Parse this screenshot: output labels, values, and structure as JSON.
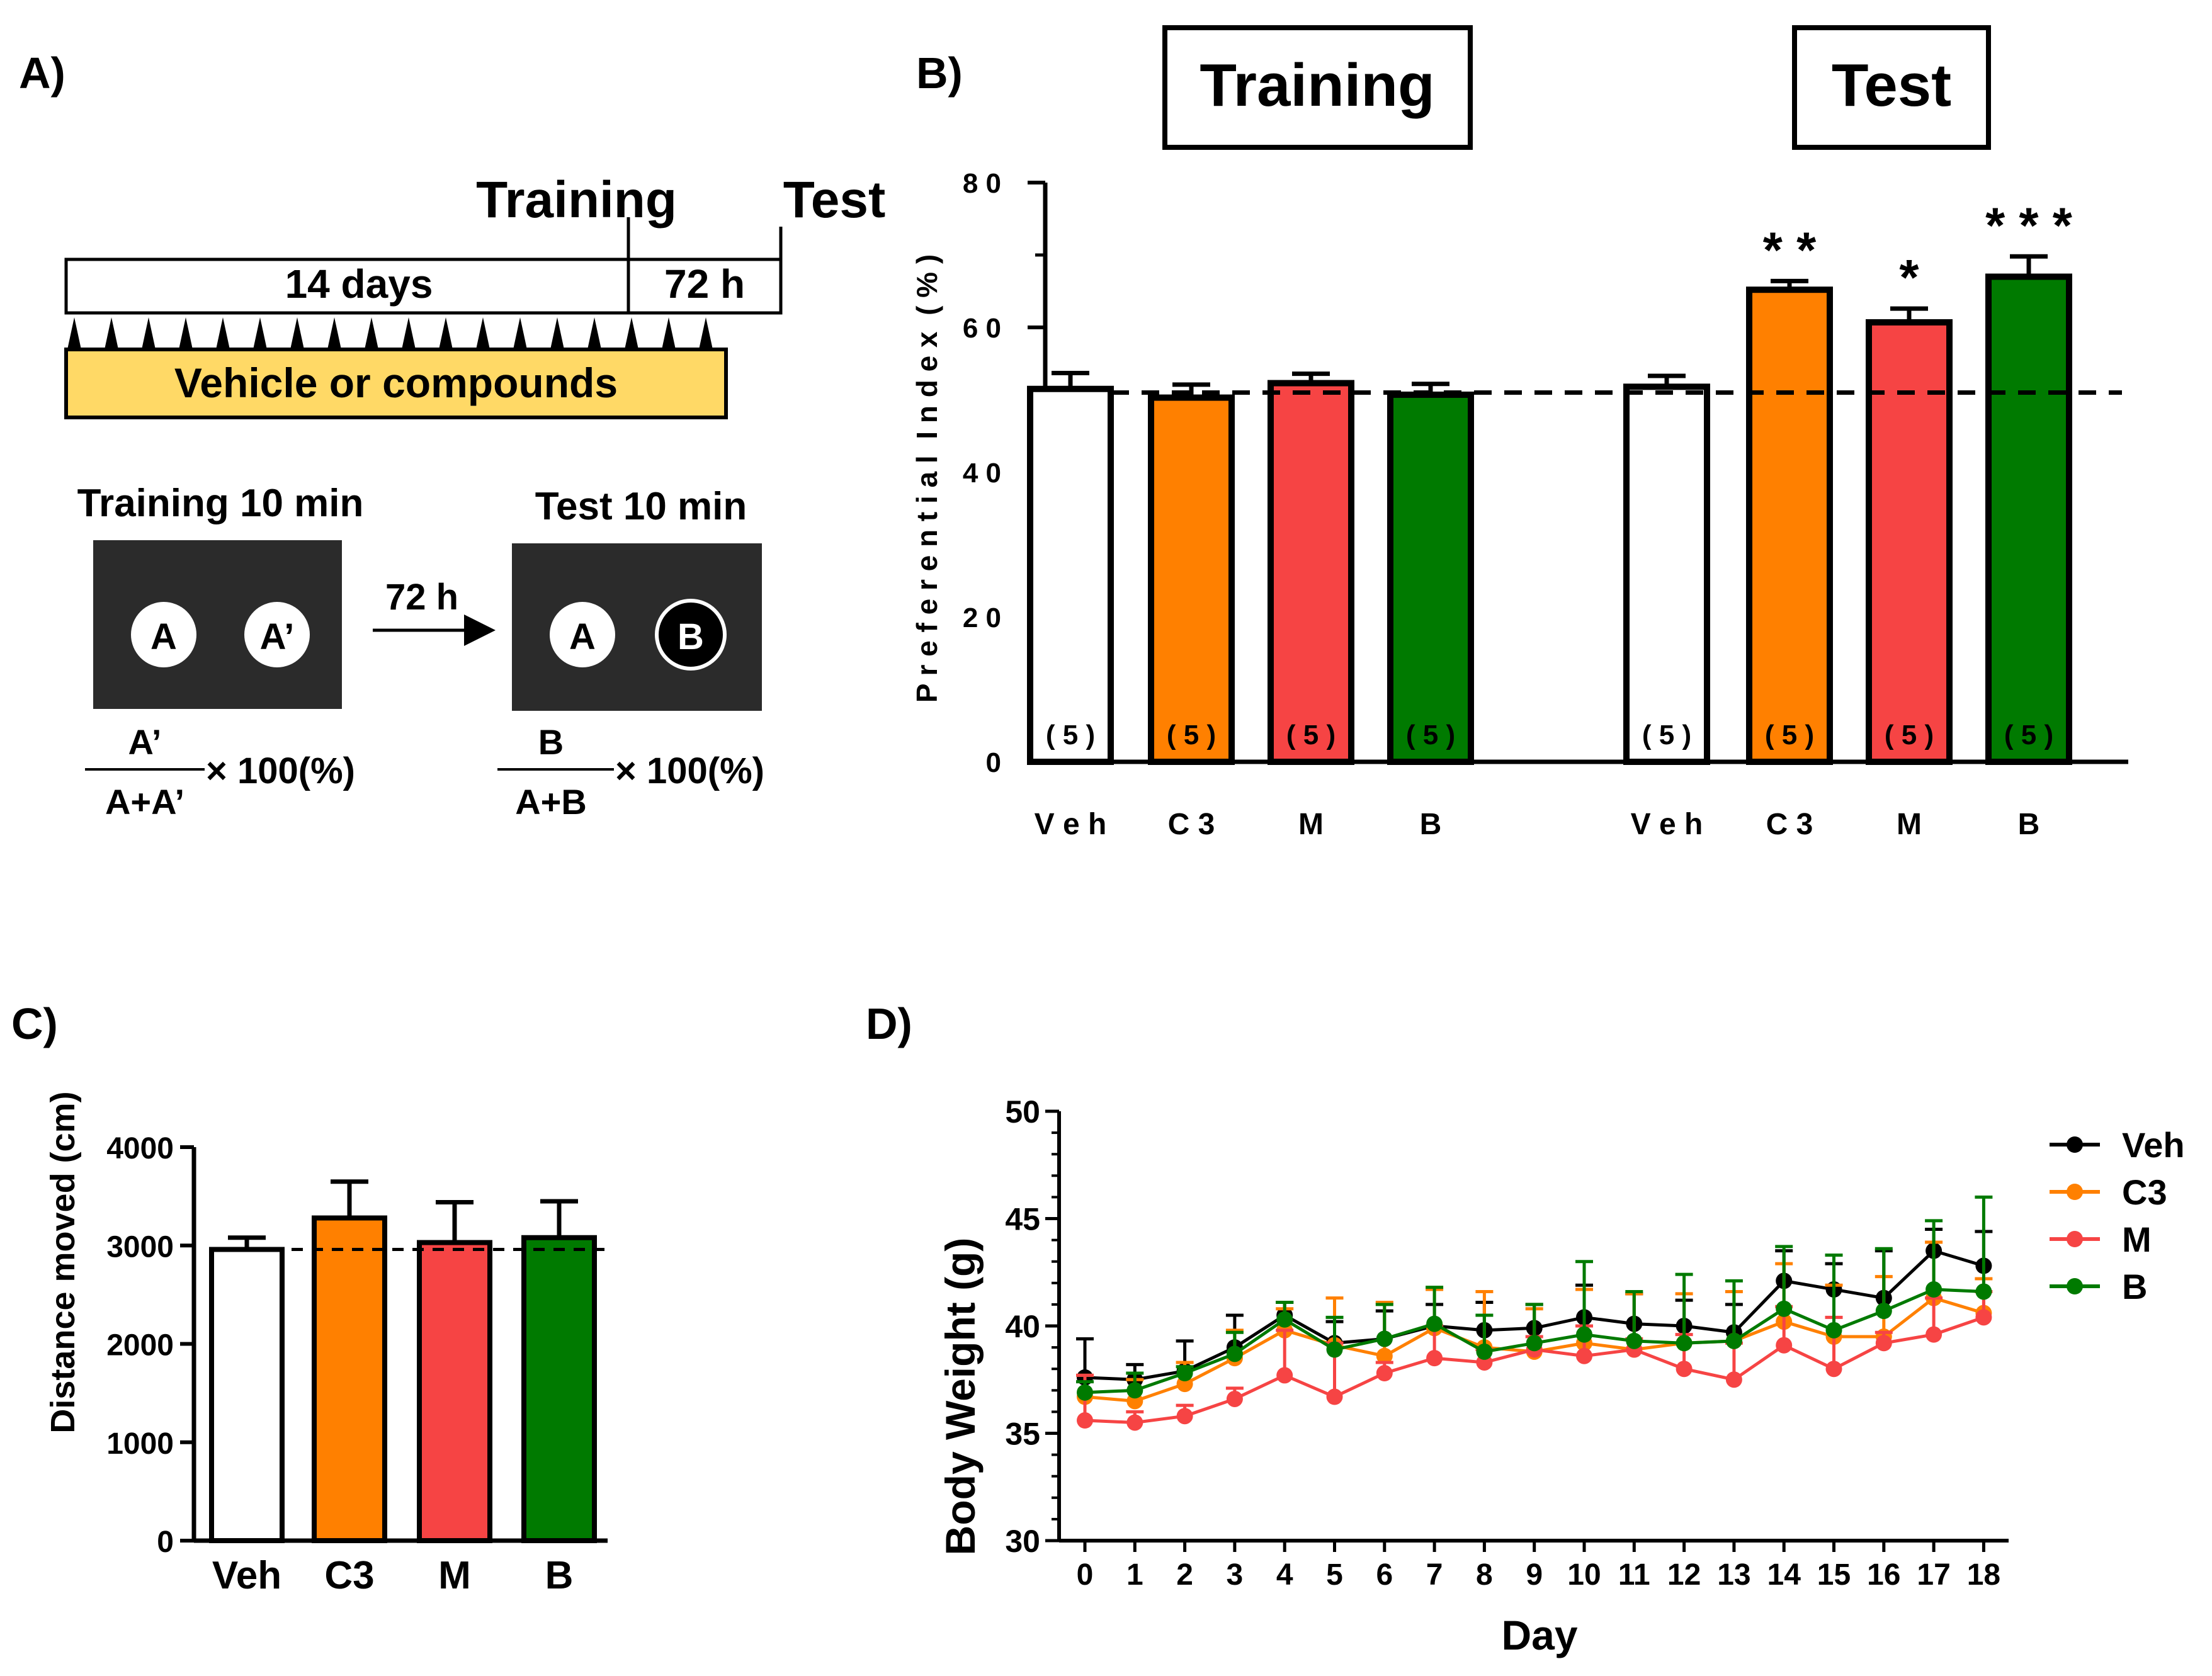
{
  "panel_a": {
    "label": "A)",
    "timeline_training": "Training",
    "timeline_test": "Test",
    "days_label": "14 days",
    "hours_label": "72 h",
    "vehicle_label": "Vehicle or compounds",
    "training_title": "Training 10 min",
    "test_title": "Test 10 min",
    "arrow_label": "72 h",
    "obj_a": "A",
    "obj_a_prime": "A’",
    "obj_a2": "A",
    "obj_b": "B",
    "formula_train_num": "A’",
    "formula_train_den": "A+A’",
    "formula_test_num": "B",
    "formula_test_den": "A+B",
    "formula_suffix": "× 100(%)",
    "colors": {
      "vehicle_bar": "#ffd966",
      "arena": "#2b2b2b"
    }
  },
  "chart_data": [
    {
      "id": "B",
      "panel_label": "B)",
      "type": "bar",
      "group_boxes": [
        "Training",
        "Test"
      ],
      "ylabel": "P r e f e r e n t i a l  I n d e x  ( % )",
      "ylim": [
        0,
        80
      ],
      "yticks": [
        "0",
        "2 0",
        "4 0",
        "6 0",
        "8 0"
      ],
      "reference_line": 51,
      "categories": [
        "V e h",
        "C 3",
        "M",
        "B",
        "V e h",
        "C 3",
        "M",
        "B"
      ],
      "values": [
        51.5,
        50.3,
        52.3,
        50.7,
        51.8,
        65.2,
        60.7,
        67.0
      ],
      "errors": [
        2.2,
        1.8,
        1.3,
        1.5,
        1.5,
        1.2,
        1.9,
        2.8
      ],
      "n_labels": [
        "( 5 )",
        "( 5 )",
        "( 5 )",
        "( 5 )",
        "( 5 )",
        "( 5 )",
        "( 5 )",
        "( 5 )"
      ],
      "significance": [
        "",
        "",
        "",
        "",
        "",
        "* *",
        "*",
        "* * *"
      ],
      "colors": [
        "#ffffff",
        "#ff8000",
        "#f64444",
        "#007a00",
        "#ffffff",
        "#ff8000",
        "#f64444",
        "#007a00"
      ]
    },
    {
      "id": "C",
      "panel_label": "C)",
      "type": "bar",
      "ylabel": "Distance moved (cm)",
      "ylim": [
        0,
        4000
      ],
      "yticks": [
        "0",
        "1000",
        "2000",
        "3000",
        "4000"
      ],
      "reference_line": 2960,
      "categories": [
        "Veh",
        "C3",
        "M",
        "B"
      ],
      "values": [
        2960,
        3280,
        3030,
        3080
      ],
      "errors": [
        120,
        370,
        410,
        370
      ],
      "colors": [
        "#ffffff",
        "#ff8000",
        "#f64444",
        "#007a00"
      ]
    },
    {
      "id": "D",
      "panel_label": "D)",
      "type": "line",
      "xlabel": "Day",
      "ylabel": "Body Weight (g)",
      "ylim": [
        30,
        50
      ],
      "yticks": [
        "30",
        "35",
        "40",
        "45",
        "50"
      ],
      "x": [
        0,
        1,
        2,
        3,
        4,
        5,
        6,
        7,
        8,
        9,
        10,
        11,
        12,
        13,
        14,
        15,
        16,
        17,
        18
      ],
      "series": [
        {
          "name": "Veh",
          "color": "#000000",
          "values": [
            37.6,
            37.5,
            37.9,
            39.0,
            40.5,
            39.2,
            39.4,
            40.0,
            39.8,
            39.9,
            40.4,
            40.1,
            40.0,
            39.7,
            42.1,
            41.7,
            41.3,
            43.5,
            42.8
          ],
          "errors": [
            1.8,
            0.7,
            1.4,
            1.5,
            0.6,
            1.0,
            1.3,
            1.0,
            1.3,
            1.1,
            1.5,
            1.4,
            1.2,
            1.3,
            1.4,
            1.2,
            2.2,
            1.0,
            1.6
          ]
        },
        {
          "name": "C3",
          "color": "#ff8000",
          "values": [
            36.7,
            36.5,
            37.3,
            38.5,
            39.8,
            39.1,
            38.6,
            39.9,
            39.0,
            38.8,
            39.2,
            38.9,
            39.2,
            39.3,
            40.2,
            39.5,
            39.5,
            41.3,
            40.6
          ],
          "errors": [
            1.0,
            1.0,
            1.0,
            1.3,
            1.0,
            2.2,
            2.5,
            1.8,
            2.6,
            2.0,
            2.5,
            2.6,
            2.3,
            2.3,
            2.7,
            2.4,
            2.8,
            2.6,
            1.6
          ]
        },
        {
          "name": "M",
          "color": "#f64444",
          "values": [
            35.6,
            35.5,
            35.8,
            36.6,
            37.7,
            36.7,
            37.8,
            38.5,
            38.3,
            38.9,
            38.6,
            38.9,
            38.0,
            37.5,
            39.1,
            38.0,
            39.2,
            39.6,
            40.4
          ],
          "errors": [
            2.1,
            0.5,
            0.5,
            0.5,
            2.1,
            2.5,
            0.5,
            1.5,
            0.6,
            0.6,
            1.4,
            0.5,
            1.6,
            1.7,
            1.8,
            2.4,
            0.5,
            1.7,
            1.2
          ]
        },
        {
          "name": "B",
          "color": "#007a00",
          "values": [
            36.9,
            37.0,
            37.8,
            38.7,
            40.3,
            38.9,
            39.4,
            40.1,
            38.8,
            39.2,
            39.6,
            39.3,
            39.2,
            39.3,
            40.8,
            39.8,
            40.7,
            41.7,
            41.6
          ],
          "errors": [
            0.5,
            0.8,
            0.3,
            1.0,
            0.8,
            1.5,
            1.6,
            1.7,
            1.7,
            1.8,
            3.4,
            2.3,
            3.2,
            2.8,
            2.9,
            3.5,
            2.9,
            3.2,
            4.4
          ]
        }
      ]
    }
  ]
}
